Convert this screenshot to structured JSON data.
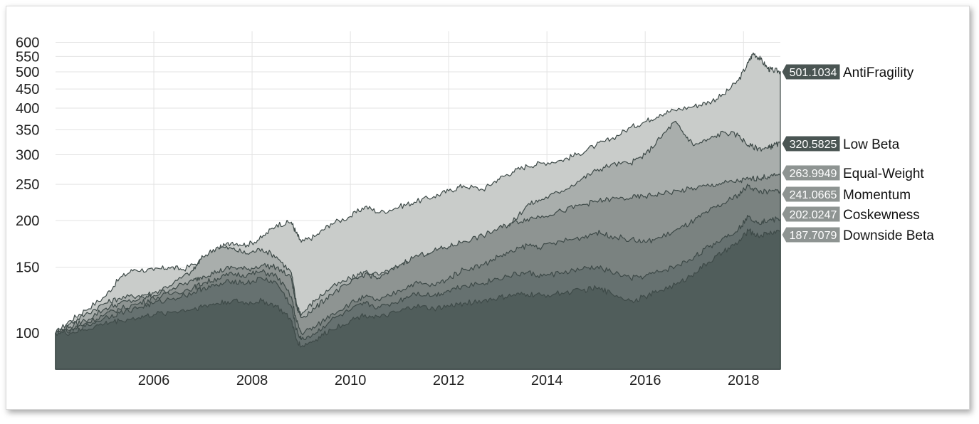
{
  "chart_data": {
    "type": "area",
    "scale": "log",
    "grid": true,
    "ylim": [
      80,
      620
    ],
    "xlim": [
      2004.0,
      2018.75
    ],
    "y_ticks": [
      100,
      150,
      200,
      250,
      300,
      350,
      400,
      450,
      500,
      550,
      600
    ],
    "x_ticks": [
      2006,
      2008,
      2010,
      2012,
      2014,
      2016,
      2018
    ],
    "x_tick_labels": [
      "2006",
      "2008",
      "2010",
      "2012",
      "2014",
      "2016",
      "2018"
    ],
    "series": [
      {
        "name": "AntiFragility",
        "end_label": "501.1034",
        "color": "#c9ccca",
        "tag_color": "#4a5553",
        "points": [
          [
            2004.0,
            100
          ],
          [
            2004.3,
            108
          ],
          [
            2004.6,
            115
          ],
          [
            2005.0,
            125
          ],
          [
            2005.3,
            140
          ],
          [
            2005.6,
            148
          ],
          [
            2006.0,
            147
          ],
          [
            2006.3,
            150
          ],
          [
            2006.6,
            148
          ],
          [
            2007.0,
            157
          ],
          [
            2007.3,
            168
          ],
          [
            2007.6,
            175
          ],
          [
            2007.9,
            172
          ],
          [
            2008.2,
            180
          ],
          [
            2008.5,
            195
          ],
          [
            2008.8,
            198
          ],
          [
            2008.9,
            185
          ],
          [
            2009.0,
            175
          ],
          [
            2009.3,
            182
          ],
          [
            2009.6,
            196
          ],
          [
            2010.0,
            205
          ],
          [
            2010.3,
            218
          ],
          [
            2010.6,
            210
          ],
          [
            2011.0,
            218
          ],
          [
            2011.3,
            224
          ],
          [
            2011.7,
            232
          ],
          [
            2012.0,
            240
          ],
          [
            2012.3,
            248
          ],
          [
            2012.7,
            242
          ],
          [
            2013.0,
            258
          ],
          [
            2013.3,
            270
          ],
          [
            2013.6,
            280
          ],
          [
            2013.9,
            285
          ],
          [
            2014.3,
            290
          ],
          [
            2014.6,
            300
          ],
          [
            2015.0,
            318
          ],
          [
            2015.3,
            330
          ],
          [
            2015.7,
            355
          ],
          [
            2016.0,
            368
          ],
          [
            2016.3,
            385
          ],
          [
            2016.6,
            395
          ],
          [
            2017.0,
            405
          ],
          [
            2017.3,
            415
          ],
          [
            2017.6,
            435
          ],
          [
            2017.9,
            475
          ],
          [
            2018.1,
            530
          ],
          [
            2018.2,
            562
          ],
          [
            2018.35,
            540
          ],
          [
            2018.5,
            510
          ],
          [
            2018.6,
            505
          ],
          [
            2018.75,
            501
          ]
        ]
      },
      {
        "name": "Low Beta",
        "end_label": "320.5825",
        "color": "#a9aeac",
        "tag_color": "#4a5553",
        "points": [
          [
            2004.0,
            100
          ],
          [
            2004.3,
            106
          ],
          [
            2004.6,
            112
          ],
          [
            2005.0,
            120
          ],
          [
            2005.3,
            124
          ],
          [
            2005.7,
            126
          ],
          [
            2006.0,
            128
          ],
          [
            2006.4,
            136
          ],
          [
            2006.8,
            147
          ],
          [
            2007.0,
            160
          ],
          [
            2007.3,
            170
          ],
          [
            2007.6,
            168
          ],
          [
            2007.9,
            163
          ],
          [
            2008.2,
            168
          ],
          [
            2008.5,
            160
          ],
          [
            2008.8,
            145
          ],
          [
            2008.9,
            120
          ],
          [
            2009.0,
            112
          ],
          [
            2009.3,
            123
          ],
          [
            2009.6,
            132
          ],
          [
            2010.0,
            140
          ],
          [
            2010.3,
            146
          ],
          [
            2010.6,
            143
          ],
          [
            2011.0,
            150
          ],
          [
            2011.3,
            158
          ],
          [
            2011.7,
            163
          ],
          [
            2012.0,
            166
          ],
          [
            2012.3,
            172
          ],
          [
            2012.7,
            178
          ],
          [
            2013.0,
            185
          ],
          [
            2013.3,
            198
          ],
          [
            2013.6,
            220
          ],
          [
            2013.9,
            228
          ],
          [
            2014.3,
            240
          ],
          [
            2014.7,
            258
          ],
          [
            2015.0,
            272
          ],
          [
            2015.3,
            282
          ],
          [
            2015.7,
            285
          ],
          [
            2016.0,
            300
          ],
          [
            2016.3,
            332
          ],
          [
            2016.6,
            368
          ],
          [
            2016.8,
            340
          ],
          [
            2017.0,
            318
          ],
          [
            2017.3,
            330
          ],
          [
            2017.6,
            345
          ],
          [
            2017.9,
            338
          ],
          [
            2018.1,
            318
          ],
          [
            2018.3,
            312
          ],
          [
            2018.5,
            312
          ],
          [
            2018.6,
            318
          ],
          [
            2018.75,
            321
          ]
        ]
      },
      {
        "name": "Equal-Weight",
        "end_label": "263.9949",
        "color": "#8e9492",
        "tag_color": "#8e9492",
        "points": [
          [
            2004.0,
            100
          ],
          [
            2004.3,
            104
          ],
          [
            2004.6,
            108
          ],
          [
            2005.0,
            116
          ],
          [
            2005.3,
            120
          ],
          [
            2005.7,
            123
          ],
          [
            2006.0,
            126
          ],
          [
            2006.4,
            132
          ],
          [
            2006.8,
            138
          ],
          [
            2007.0,
            142
          ],
          [
            2007.3,
            146
          ],
          [
            2007.6,
            150
          ],
          [
            2007.9,
            148
          ],
          [
            2008.2,
            152
          ],
          [
            2008.5,
            150
          ],
          [
            2008.8,
            140
          ],
          [
            2008.9,
            118
          ],
          [
            2009.0,
            110
          ],
          [
            2009.3,
            117
          ],
          [
            2009.6,
            127
          ],
          [
            2010.0,
            136
          ],
          [
            2010.3,
            144
          ],
          [
            2010.6,
            140
          ],
          [
            2011.0,
            152
          ],
          [
            2011.3,
            160
          ],
          [
            2011.7,
            166
          ],
          [
            2012.0,
            170
          ],
          [
            2012.3,
            176
          ],
          [
            2012.7,
            182
          ],
          [
            2013.0,
            190
          ],
          [
            2013.3,
            197
          ],
          [
            2013.6,
            202
          ],
          [
            2013.9,
            206
          ],
          [
            2014.3,
            212
          ],
          [
            2014.7,
            220
          ],
          [
            2015.0,
            225
          ],
          [
            2015.3,
            228
          ],
          [
            2015.7,
            230
          ],
          [
            2016.0,
            232
          ],
          [
            2016.3,
            236
          ],
          [
            2016.7,
            240
          ],
          [
            2017.0,
            244
          ],
          [
            2017.3,
            248
          ],
          [
            2017.6,
            252
          ],
          [
            2017.9,
            255
          ],
          [
            2018.1,
            258
          ],
          [
            2018.3,
            260
          ],
          [
            2018.5,
            262
          ],
          [
            2018.75,
            264
          ]
        ]
      },
      {
        "name": "Momentum",
        "end_label": "241.0665",
        "color": "#7a8280",
        "tag_color": "#8e9492",
        "points": [
          [
            2004.0,
            100
          ],
          [
            2004.3,
            102
          ],
          [
            2004.6,
            106
          ],
          [
            2005.0,
            112
          ],
          [
            2005.3,
            116
          ],
          [
            2005.7,
            120
          ],
          [
            2006.0,
            124
          ],
          [
            2006.4,
            128
          ],
          [
            2006.8,
            132
          ],
          [
            2007.0,
            136
          ],
          [
            2007.3,
            140
          ],
          [
            2007.6,
            144
          ],
          [
            2007.9,
            143
          ],
          [
            2008.2,
            146
          ],
          [
            2008.5,
            142
          ],
          [
            2008.8,
            125
          ],
          [
            2008.9,
            108
          ],
          [
            2009.0,
            100
          ],
          [
            2009.3,
            104
          ],
          [
            2009.6,
            112
          ],
          [
            2010.0,
            120
          ],
          [
            2010.3,
            125
          ],
          [
            2010.6,
            122
          ],
          [
            2011.0,
            130
          ],
          [
            2011.3,
            136
          ],
          [
            2011.7,
            134
          ],
          [
            2012.0,
            140
          ],
          [
            2012.3,
            148
          ],
          [
            2012.7,
            152
          ],
          [
            2013.0,
            160
          ],
          [
            2013.3,
            165
          ],
          [
            2013.6,
            172
          ],
          [
            2013.9,
            170
          ],
          [
            2014.3,
            176
          ],
          [
            2014.7,
            180
          ],
          [
            2015.0,
            186
          ],
          [
            2015.3,
            182
          ],
          [
            2015.7,
            178
          ],
          [
            2016.0,
            175
          ],
          [
            2016.3,
            180
          ],
          [
            2016.7,
            190
          ],
          [
            2017.0,
            200
          ],
          [
            2017.3,
            212
          ],
          [
            2017.6,
            222
          ],
          [
            2017.9,
            235
          ],
          [
            2018.1,
            248
          ],
          [
            2018.3,
            240
          ],
          [
            2018.5,
            238
          ],
          [
            2018.75,
            241
          ]
        ]
      },
      {
        "name": "Coskewness",
        "end_label": "202.0247",
        "color": "#667170",
        "tag_color": "#8e9492",
        "points": [
          [
            2004.0,
            100
          ],
          [
            2004.3,
            101
          ],
          [
            2004.6,
            104
          ],
          [
            2005.0,
            110
          ],
          [
            2005.3,
            113
          ],
          [
            2005.7,
            117
          ],
          [
            2006.0,
            120
          ],
          [
            2006.4,
            124
          ],
          [
            2006.8,
            128
          ],
          [
            2007.0,
            132
          ],
          [
            2007.3,
            134
          ],
          [
            2007.6,
            138
          ],
          [
            2007.9,
            136
          ],
          [
            2008.2,
            140
          ],
          [
            2008.5,
            136
          ],
          [
            2008.8,
            118
          ],
          [
            2008.9,
            102
          ],
          [
            2009.0,
            96
          ],
          [
            2009.3,
            100
          ],
          [
            2009.6,
            108
          ],
          [
            2010.0,
            115
          ],
          [
            2010.3,
            120
          ],
          [
            2010.6,
            117
          ],
          [
            2011.0,
            122
          ],
          [
            2011.3,
            128
          ],
          [
            2011.7,
            126
          ],
          [
            2012.0,
            130
          ],
          [
            2012.3,
            134
          ],
          [
            2012.7,
            136
          ],
          [
            2013.0,
            140
          ],
          [
            2013.3,
            143
          ],
          [
            2013.6,
            145
          ],
          [
            2013.9,
            142
          ],
          [
            2014.3,
            145
          ],
          [
            2014.7,
            148
          ],
          [
            2015.0,
            150
          ],
          [
            2015.3,
            146
          ],
          [
            2015.7,
            140
          ],
          [
            2016.0,
            142
          ],
          [
            2016.3,
            146
          ],
          [
            2016.7,
            152
          ],
          [
            2017.0,
            160
          ],
          [
            2017.3,
            170
          ],
          [
            2017.6,
            180
          ],
          [
            2017.9,
            190
          ],
          [
            2018.1,
            205
          ],
          [
            2018.3,
            198
          ],
          [
            2018.5,
            200
          ],
          [
            2018.75,
            202
          ]
        ]
      },
      {
        "name": "Downside Beta",
        "end_label": "187.7079",
        "color": "#505d5b",
        "tag_color": "#8e9492",
        "points": [
          [
            2004.0,
            100
          ],
          [
            2004.3,
            100
          ],
          [
            2004.6,
            102
          ],
          [
            2005.0,
            106
          ],
          [
            2005.3,
            108
          ],
          [
            2005.7,
            110
          ],
          [
            2006.0,
            112
          ],
          [
            2006.4,
            114
          ],
          [
            2006.8,
            116
          ],
          [
            2007.0,
            118
          ],
          [
            2007.3,
            120
          ],
          [
            2007.6,
            122
          ],
          [
            2007.9,
            120
          ],
          [
            2008.2,
            122
          ],
          [
            2008.5,
            118
          ],
          [
            2008.8,
            108
          ],
          [
            2008.9,
            96
          ],
          [
            2009.0,
            92
          ],
          [
            2009.3,
            96
          ],
          [
            2009.6,
            102
          ],
          [
            2010.0,
            108
          ],
          [
            2010.3,
            112
          ],
          [
            2010.6,
            110
          ],
          [
            2011.0,
            114
          ],
          [
            2011.3,
            118
          ],
          [
            2011.7,
            116
          ],
          [
            2012.0,
            118
          ],
          [
            2012.3,
            120
          ],
          [
            2012.7,
            122
          ],
          [
            2013.0,
            124
          ],
          [
            2013.3,
            126
          ],
          [
            2013.6,
            127
          ],
          [
            2013.9,
            126
          ],
          [
            2014.3,
            128
          ],
          [
            2014.7,
            130
          ],
          [
            2015.0,
            132
          ],
          [
            2015.3,
            128
          ],
          [
            2015.7,
            122
          ],
          [
            2016.0,
            125
          ],
          [
            2016.3,
            130
          ],
          [
            2016.7,
            136
          ],
          [
            2017.0,
            145
          ],
          [
            2017.3,
            155
          ],
          [
            2017.6,
            165
          ],
          [
            2017.9,
            175
          ],
          [
            2018.1,
            188
          ],
          [
            2018.3,
            182
          ],
          [
            2018.5,
            185
          ],
          [
            2018.75,
            188
          ]
        ]
      }
    ]
  }
}
